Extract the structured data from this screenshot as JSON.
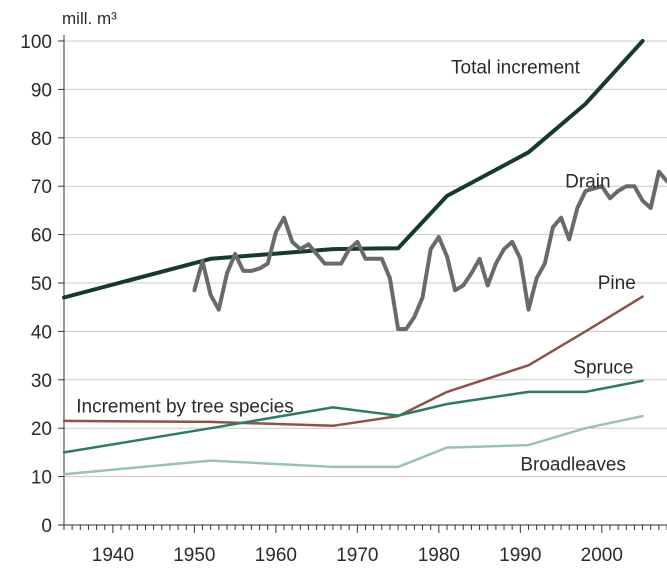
{
  "chart_data": {
    "type": "line",
    "ylabel": "mill. m³",
    "xlim": [
      1934,
      2008
    ],
    "ylim": [
      0,
      100
    ],
    "yticks": [
      0,
      10,
      20,
      30,
      40,
      50,
      60,
      70,
      80,
      90,
      100
    ],
    "xticks": [
      1940,
      1950,
      1960,
      1970,
      1980,
      1990,
      2000
    ],
    "grid": "horizontal",
    "annotations": [
      {
        "text": "Increment by tree species",
        "x": 1935.5,
        "y": 24.5
      }
    ],
    "series": [
      {
        "name": "Total increment",
        "color": "#163a2c",
        "width": 4,
        "label_at": [
          1981.5,
          94.5
        ],
        "x": [
          1934,
          1952,
          1967,
          1975,
          1981,
          1991,
          1998,
          2005
        ],
        "y": [
          47,
          55,
          57,
          57.2,
          68,
          77,
          87,
          100
        ]
      },
      {
        "name": "Drain",
        "color": "#6a6a6a",
        "width": 4,
        "label_at": [
          1995.5,
          71
        ],
        "x": [
          1950,
          1951,
          1952,
          1953,
          1954,
          1955,
          1956,
          1957,
          1958,
          1959,
          1960,
          1961,
          1962,
          1963,
          1964,
          1965,
          1966,
          1967,
          1968,
          1969,
          1970,
          1971,
          1972,
          1973,
          1974,
          1975,
          1976,
          1977,
          1978,
          1979,
          1980,
          1981,
          1982,
          1983,
          1984,
          1985,
          1986,
          1987,
          1988,
          1989,
          1990,
          1991,
          1992,
          1993,
          1994,
          1995,
          1996,
          1997,
          1998,
          1999,
          2000,
          2001,
          2002,
          2003,
          2004,
          2005,
          2006,
          2007,
          2008
        ],
        "y": [
          48.5,
          54.5,
          47.5,
          44.5,
          52,
          56,
          52.5,
          52.5,
          53,
          54,
          60.5,
          63.5,
          58.5,
          57,
          58,
          56,
          54,
          54,
          54,
          57,
          58.5,
          55,
          55,
          55,
          51,
          40.5,
          40.5,
          43,
          47,
          57,
          59.5,
          55.5,
          48.5,
          49.5,
          52,
          55,
          49.5,
          54,
          57,
          58.5,
          55,
          44.5,
          51,
          54,
          61.5,
          63.5,
          59,
          65.5,
          69,
          69.5,
          70,
          67.5,
          69,
          70,
          70,
          67,
          65.5,
          73,
          71
        ]
      },
      {
        "name": "Pine",
        "color": "#8b5446",
        "width": 2.5,
        "label_at": [
          1999.5,
          50
        ],
        "x": [
          1934,
          1952,
          1967,
          1975,
          1981,
          1991,
          1998,
          2005
        ],
        "y": [
          21.5,
          21.3,
          20.5,
          22.5,
          27.5,
          33,
          40,
          47.2
        ]
      },
      {
        "name": "Spruce",
        "color": "#2e7b64",
        "width": 2.5,
        "label_at": [
          1996.5,
          32.5
        ],
        "x": [
          1934,
          1952,
          1967,
          1975,
          1981,
          1991,
          1998,
          2005
        ],
        "y": [
          15,
          20,
          24.3,
          22.6,
          25,
          27.5,
          27.5,
          29.8
        ]
      },
      {
        "name": "Broadleaves",
        "color": "#97c4b0",
        "width": 2.5,
        "label_at": [
          1990,
          12.5
        ],
        "x": [
          1934,
          1952,
          1967,
          1975,
          1981,
          1991,
          1998,
          2005
        ],
        "y": [
          10.5,
          13.3,
          12,
          12,
          16,
          16.5,
          20,
          22.5
        ]
      }
    ]
  }
}
